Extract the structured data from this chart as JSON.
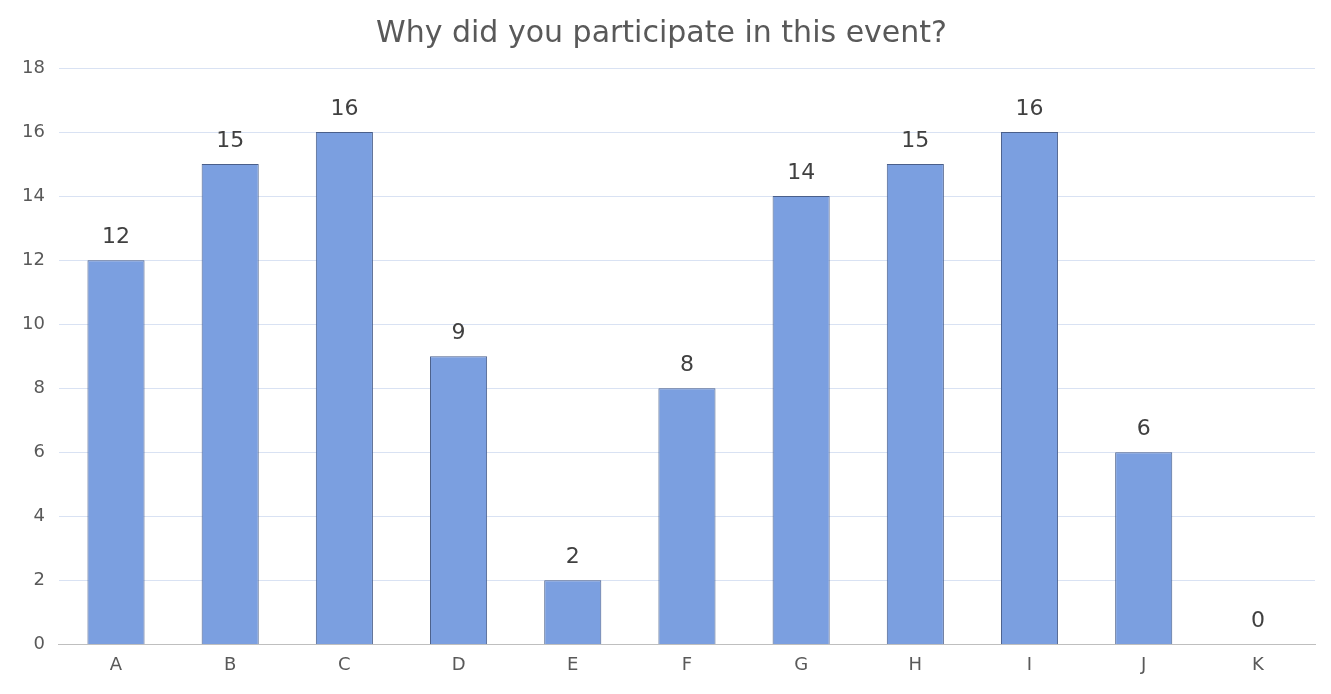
{
  "chart_data": {
    "type": "bar",
    "title": "Why did you participate in this event?",
    "categories": [
      "A",
      "B",
      "C",
      "D",
      "E",
      "F",
      "G",
      "H",
      "I",
      "J",
      "K"
    ],
    "values": [
      12,
      15,
      16,
      9,
      2,
      8,
      14,
      15,
      16,
      6,
      0
    ],
    "color": "#7b9fe0",
    "ylim": [
      0,
      18
    ],
    "yticks": [
      0,
      2,
      4,
      6,
      8,
      10,
      12,
      14,
      16,
      18
    ],
    "grid": "y",
    "data_labels": true,
    "legend": false
  }
}
